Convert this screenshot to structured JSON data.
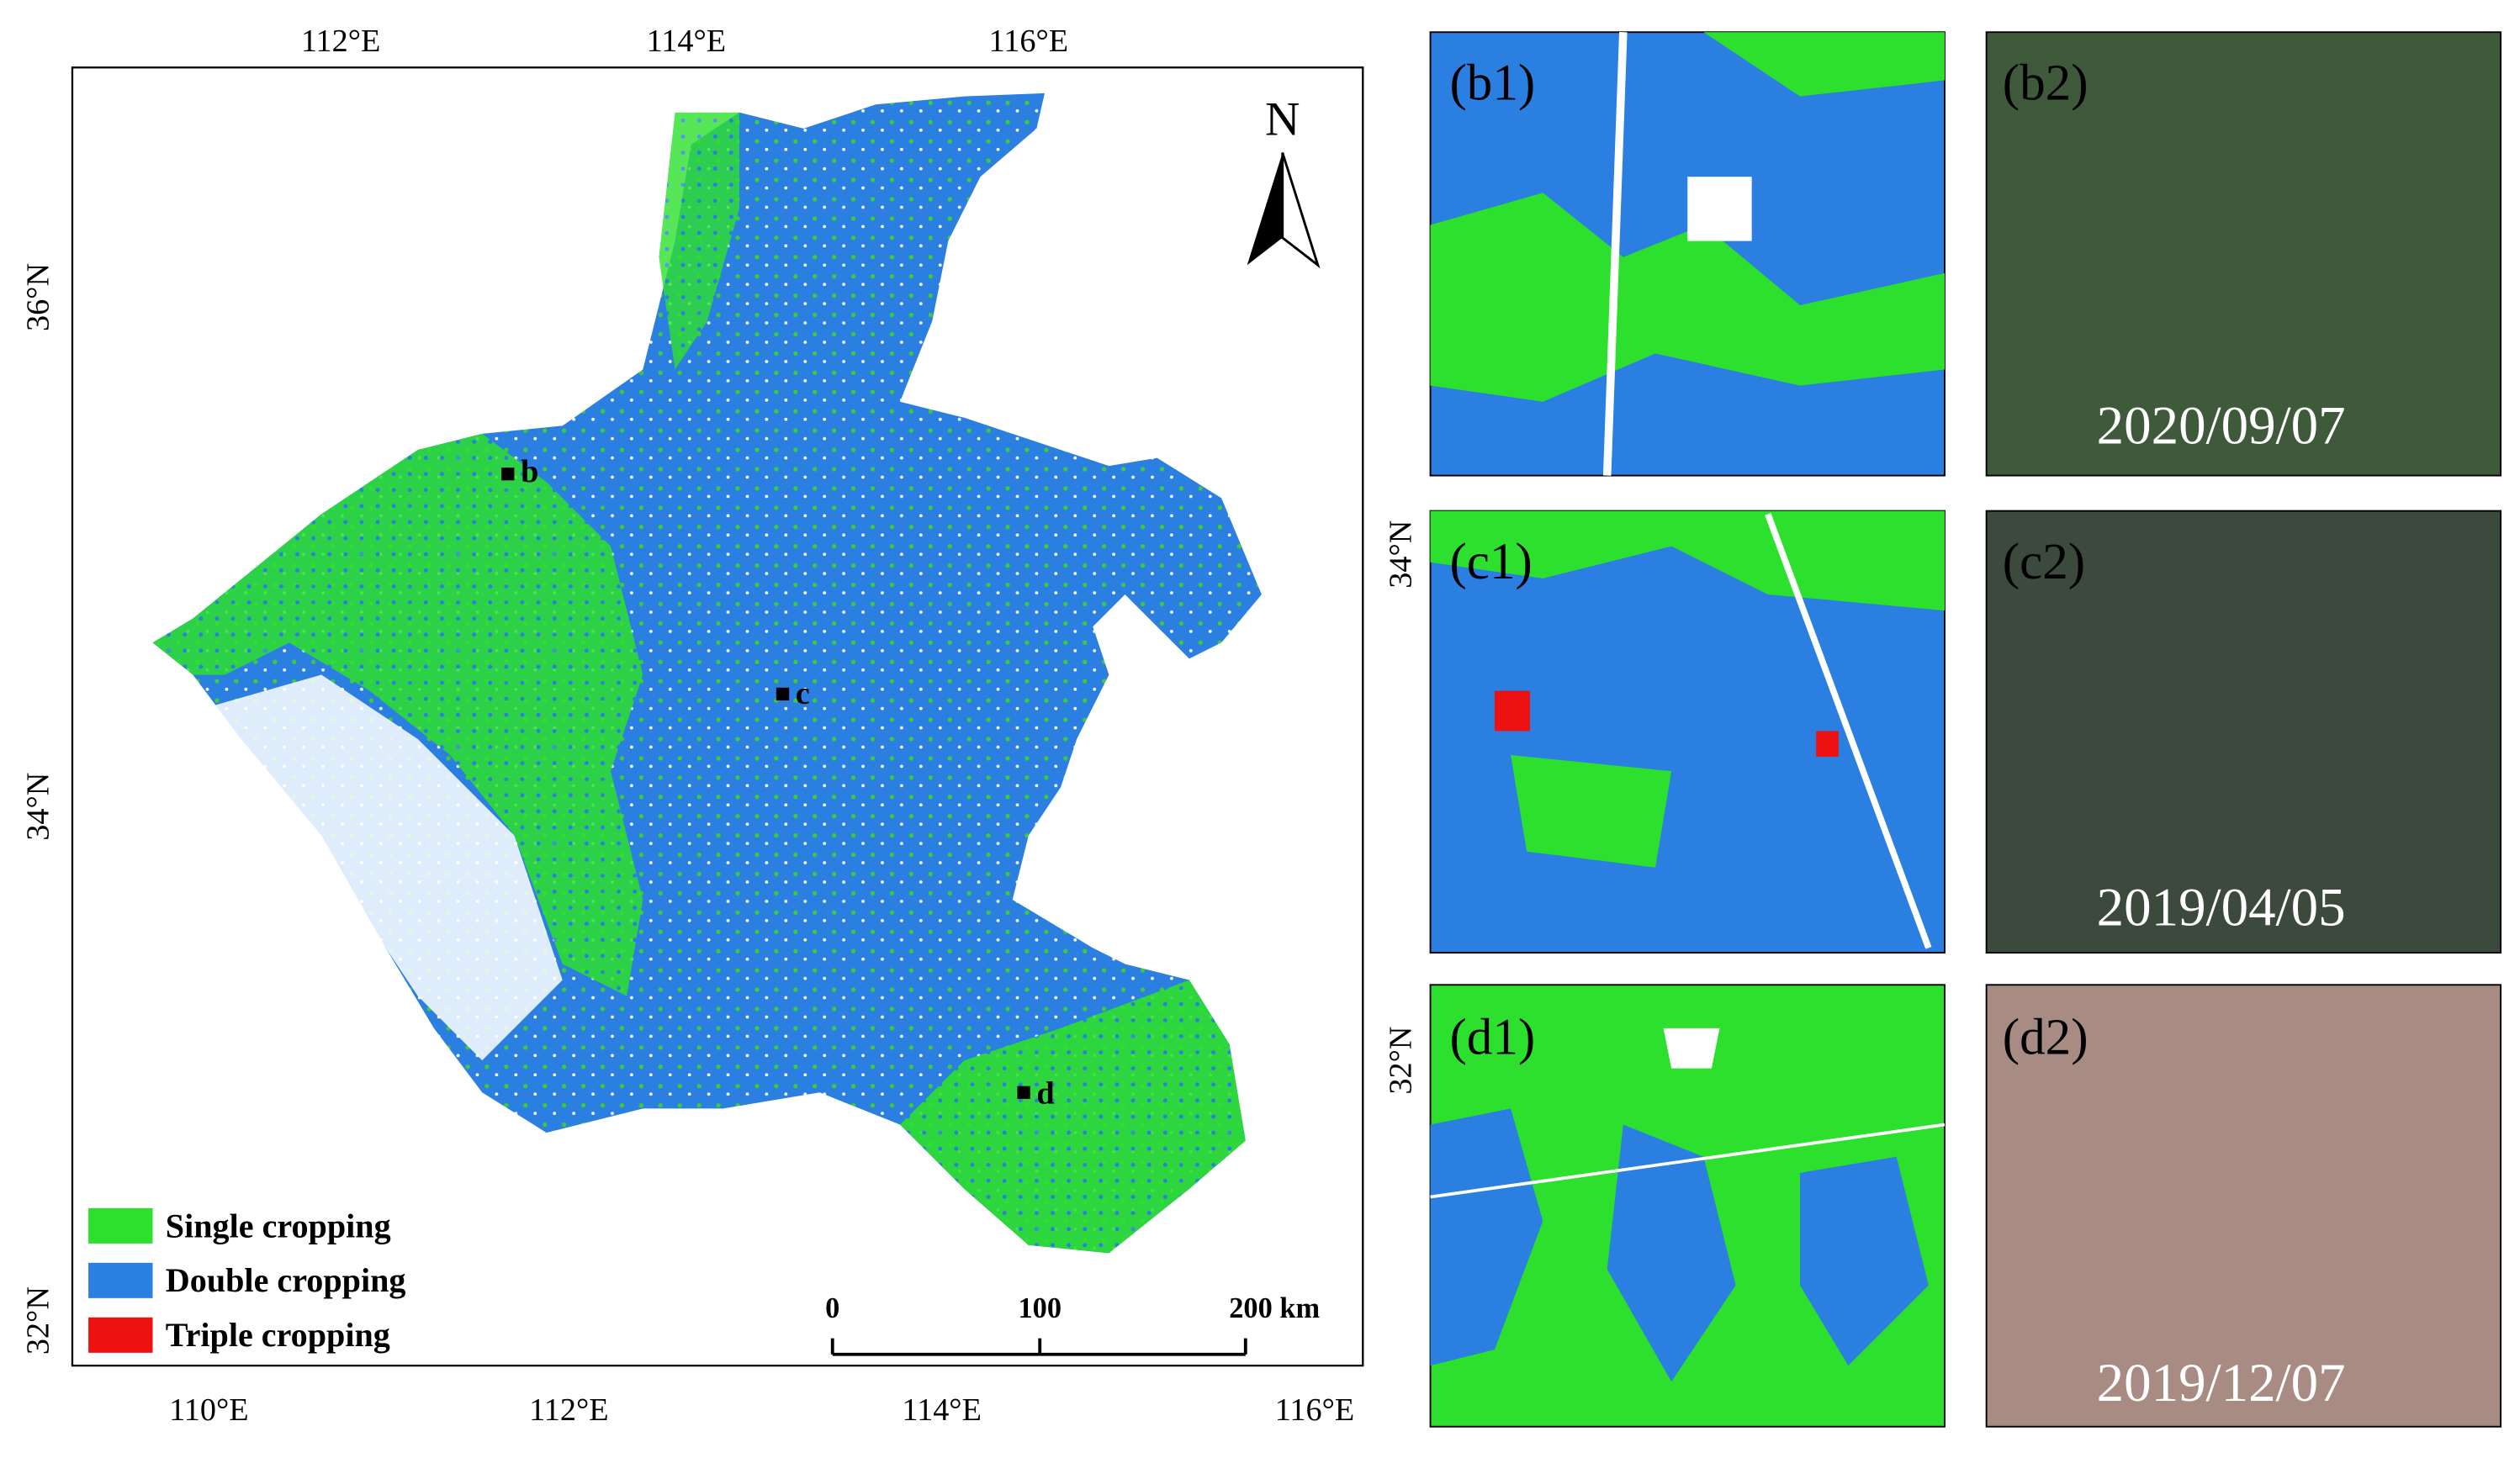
{
  "map": {
    "top_labels": [
      "112°E",
      "114°E",
      "116°E"
    ],
    "bottom_labels": [
      "110°E",
      "112°E",
      "114°E",
      "116°E"
    ],
    "left_labels": [
      "36°N",
      "34°N",
      "32°N"
    ],
    "right_labels": [
      "34°N",
      "32°N"
    ],
    "north": "N",
    "sites": [
      "b",
      "c",
      "d"
    ],
    "legend": [
      "Single cropping",
      "Double cropping",
      "Triple cropping"
    ],
    "scale": [
      "0",
      "100",
      "200 km"
    ]
  },
  "panels": [
    {
      "label": "(b1)"
    },
    {
      "label": "(b2)",
      "date": "2020/09/07"
    },
    {
      "label": "(c1)"
    },
    {
      "label": "(c2)",
      "date": "2019/04/05"
    },
    {
      "label": "(d1)"
    },
    {
      "label": "(d2)",
      "date": "2019/12/07"
    }
  ]
}
